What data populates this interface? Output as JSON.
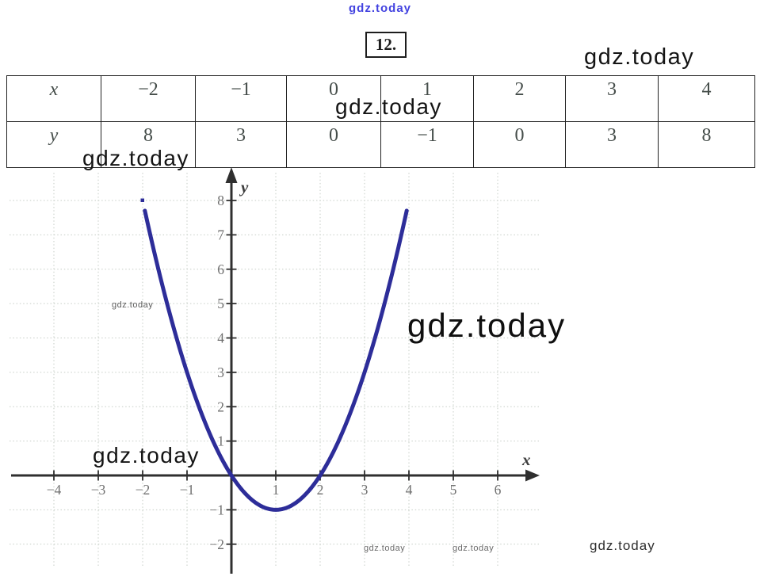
{
  "header": {
    "site_link": "gdz.today",
    "problem_number": "12."
  },
  "watermark": {
    "text": "gdz.today"
  },
  "table": {
    "rows": [
      {
        "header": "x",
        "values": [
          "−2",
          "−1",
          "0",
          "1",
          "2",
          "3",
          "4"
        ]
      },
      {
        "header": "y",
        "values": [
          "8",
          "3",
          "0",
          "−1",
          "0",
          "3",
          "8"
        ]
      }
    ]
  },
  "chart_data": {
    "type": "line",
    "title": "",
    "xlabel": "x",
    "ylabel": "y",
    "curve": "parabola through table points, vertex (1, −1)",
    "coefficients": {
      "a": 1,
      "b": -2,
      "c": 0
    },
    "x_domain": [
      -2,
      4
    ],
    "points": {
      "x": [
        -2,
        -1,
        0,
        1,
        2,
        3,
        4
      ],
      "y": [
        8,
        3,
        0,
        -1,
        0,
        3,
        8
      ]
    },
    "x_ticks": [
      -4,
      -3,
      -2,
      -1,
      1,
      2,
      3,
      4,
      5,
      6
    ],
    "y_ticks": [
      8,
      7,
      6,
      5,
      4,
      3,
      2,
      1,
      -1,
      -2
    ],
    "xlim": [
      -4.9,
      6.9
    ],
    "ylim": [
      -2.9,
      8.8
    ],
    "grid": true,
    "colors": {
      "curve": "#2d2d99",
      "axis": "#2f2f2f",
      "grid": "#c6cdc6",
      "tick_label": "#6f6f6f",
      "axis_label": "#3d3d3d"
    }
  }
}
